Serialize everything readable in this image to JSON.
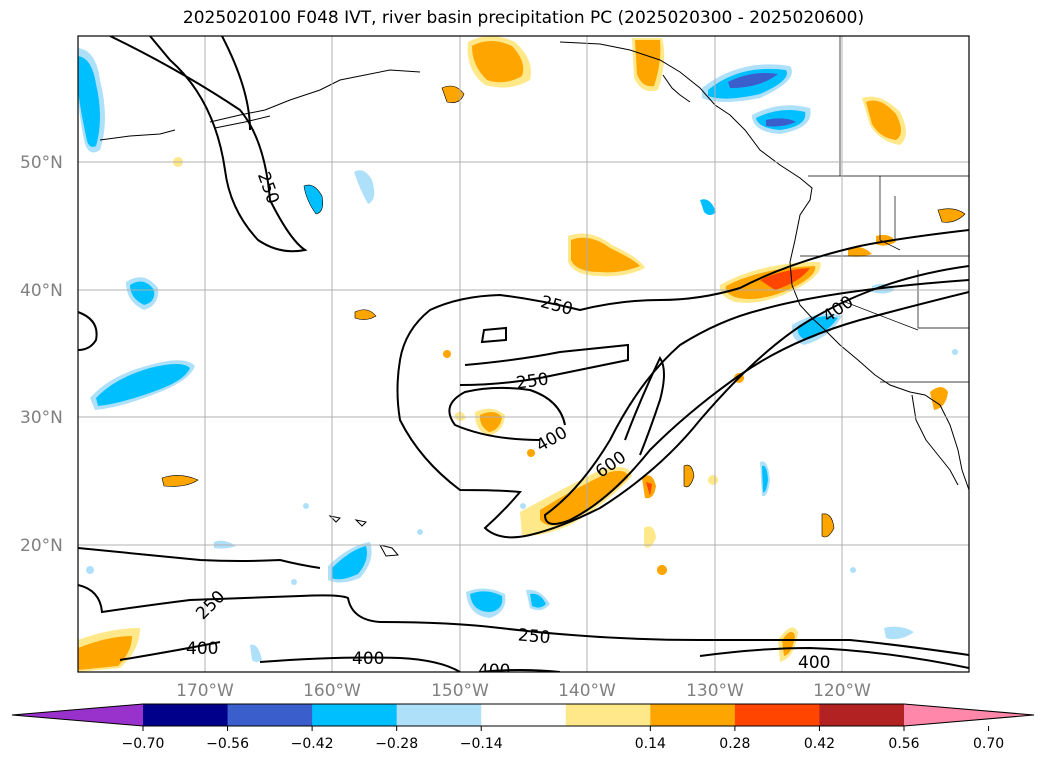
{
  "title": "2025020100 F048 IVT, river basin precipitation PC (2025020300 - 2025020600)",
  "map": {
    "lat_labels": [
      "50°N",
      "40°N",
      "30°N",
      "20°N"
    ],
    "lon_labels": [
      "170°W",
      "160°W",
      "150°W",
      "140°W",
      "130°W",
      "120°W"
    ],
    "contour_labels": [
      "250",
      "250",
      "250",
      "400",
      "600",
      "400",
      "250",
      "400",
      "250",
      "400",
      "400",
      "400"
    ]
  },
  "colorbar": {
    "ticks": [
      "−0.70",
      "−0.56",
      "−0.42",
      "−0.28",
      "−0.14",
      "0.14",
      "0.28",
      "0.42",
      "0.56",
      "0.70"
    ],
    "colors": [
      "#9932cc",
      "#00008b",
      "#3a5fcd",
      "#00bfff",
      "#afe0fa",
      "#ffffff",
      "#ffe88a",
      "#ffa500",
      "#ff4500",
      "#b22222",
      "#ff87aa"
    ]
  }
}
